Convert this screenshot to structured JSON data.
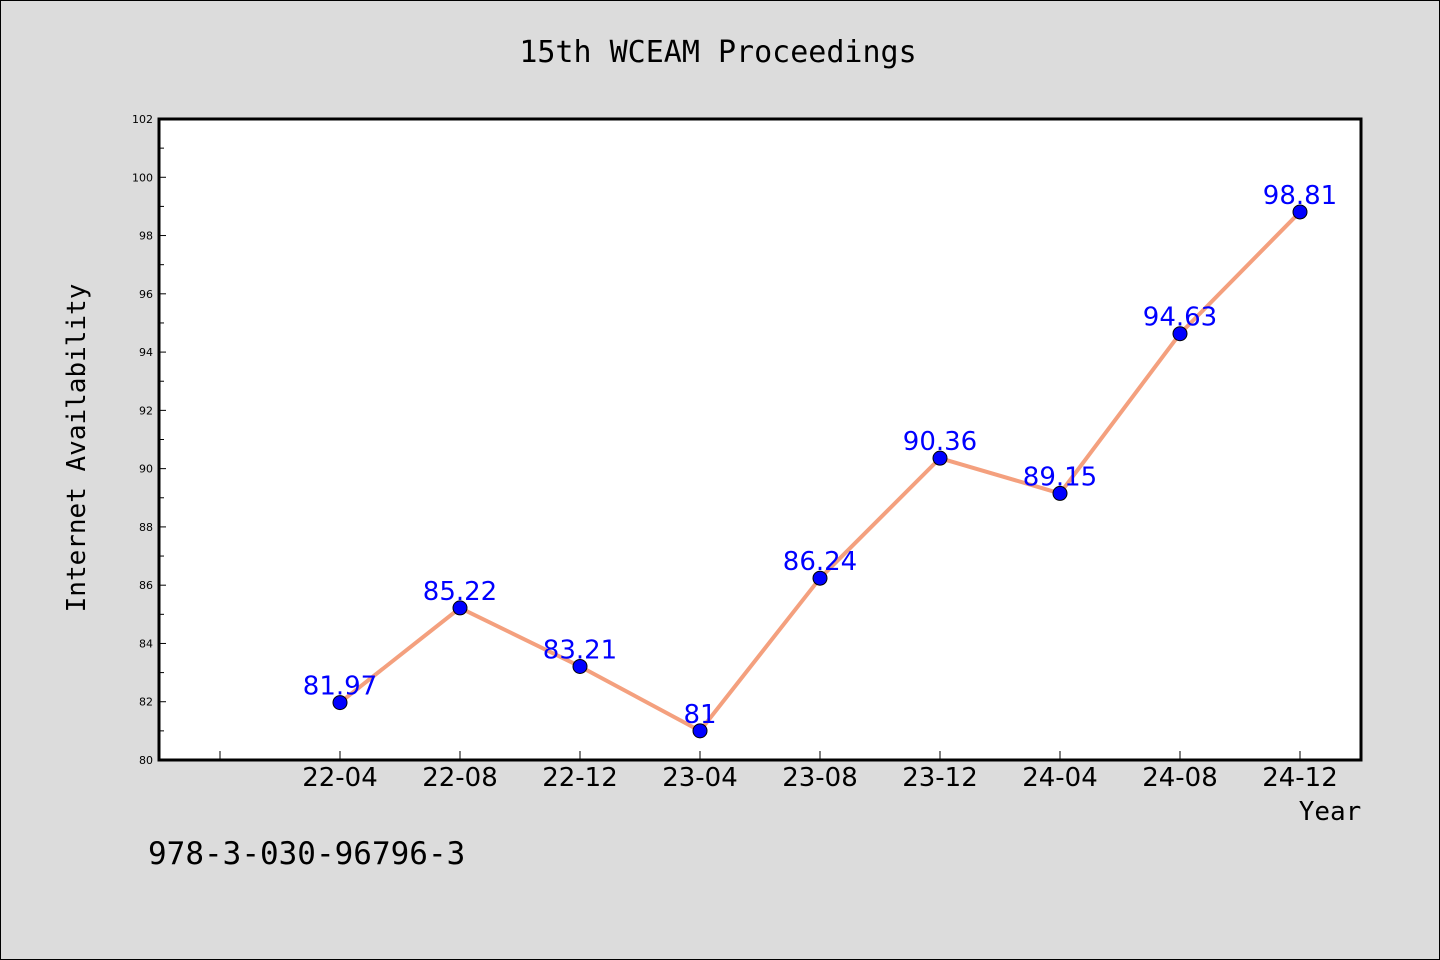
{
  "footer": {
    "isbn": "978-3-030-96796-3"
  },
  "colors": {
    "background": "#dcdcdc",
    "plot_background": "#ffffff",
    "line": "#f4a07e",
    "marker": "#0000ff",
    "data_label": "#0000ff"
  },
  "chart_data": {
    "type": "line",
    "title": "15th WCEAM Proceedings",
    "xlabel": "Year",
    "ylabel": "Internet Availability",
    "categories": [
      "22-04",
      "22-08",
      "22-12",
      "23-04",
      "23-08",
      "23-12",
      "24-04",
      "24-08",
      "24-12"
    ],
    "series": [
      {
        "values": [
          81.97,
          85.22,
          83.21,
          81,
          86.24,
          90.36,
          89.15,
          94.63,
          98.81
        ],
        "labels": [
          "81.97",
          "85.22",
          "83.21",
          "81",
          "86.24",
          "90.36",
          "89.15",
          "94.63",
          "98.81"
        ]
      }
    ],
    "ylim": [
      80,
      102
    ],
    "yticks": [
      80,
      82,
      84,
      86,
      88,
      90,
      92,
      94,
      96,
      98,
      100,
      102
    ],
    "grid": false,
    "legend": "none"
  }
}
